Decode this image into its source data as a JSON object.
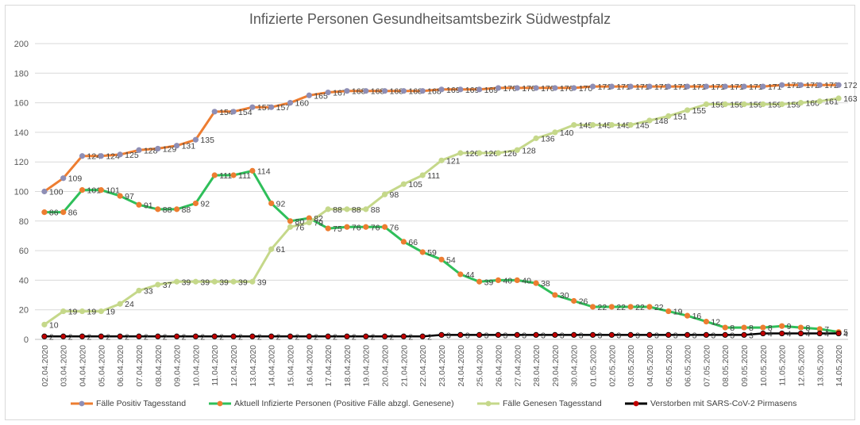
{
  "chart_data": {
    "type": "line",
    "title": "Infizierte Personen Gesundheitsamtsbezirk Südwestpfalz",
    "xlabel": "",
    "ylabel": "",
    "ylim": [
      0,
      200
    ],
    "yticks": [
      0,
      20,
      40,
      60,
      80,
      100,
      120,
      140,
      160,
      180,
      200
    ],
    "grid": true,
    "legend_position": "bottom",
    "categories": [
      "02.04.2020",
      "03.04.2020",
      "04.04.2020",
      "05.04.2020",
      "06.04.2020",
      "07.04.2020",
      "08.04.2020",
      "09.04.2020",
      "10.04.2020",
      "11.04.2020",
      "12.04.2020",
      "13.04.2020",
      "14.04.2020",
      "15.04.2020",
      "16.04.2020",
      "17.04.2020",
      "18.04.2020",
      "19.04.2020",
      "20.04.2020",
      "21.04.2020",
      "22.04.2020",
      "23.04.2020",
      "24.04.2020",
      "25.04.2020",
      "26.04.2020",
      "27.04.2020",
      "28.04.2020",
      "29.04.2020",
      "30.04.2020",
      "01.05.2020",
      "02.05.2020",
      "03.05.2020",
      "04.05.2020",
      "05.05.2020",
      "06.05.2020",
      "07.05.2020",
      "08.05.2020",
      "09.05.2020",
      "10.05.2020",
      "11.05.2020",
      "12.05.2020",
      "13.05.2020",
      "14.05.2020"
    ],
    "series": [
      {
        "name": "Fälle Positiv Tagesstand",
        "color": "#ed7d31",
        "marker": "#8e8eb5",
        "values": [
          100,
          109,
          124,
          124,
          125,
          128,
          129,
          131,
          135,
          154,
          154,
          157,
          157,
          160,
          165,
          167,
          168,
          168,
          168,
          168,
          168,
          169,
          169,
          169,
          170,
          170,
          170,
          170,
          170,
          171,
          171,
          171,
          171,
          171,
          171,
          171,
          171,
          171,
          171,
          172,
          172,
          172,
          172
        ]
      },
      {
        "name": "Aktuell Infizierte Personen (Positive Fälle abzgl. Genesene)",
        "color": "#2fbf5a",
        "marker": "#ed7d31",
        "values": [
          86,
          86,
          101,
          101,
          97,
          91,
          88,
          88,
          92,
          111,
          111,
          114,
          92,
          80,
          82,
          75,
          76,
          76,
          76,
          66,
          59,
          54,
          44,
          39,
          40,
          40,
          38,
          30,
          26,
          22,
          22,
          22,
          22,
          19,
          16,
          12,
          8,
          8,
          8,
          9,
          8,
          7,
          5
        ]
      },
      {
        "name": "Fälle Genesen Tagesstand",
        "color": "#c5d88a",
        "marker": "#c5d88a",
        "values": [
          10,
          19,
          19,
          19,
          24,
          33,
          37,
          39,
          39,
          39,
          39,
          39,
          61,
          76,
          79,
          88,
          88,
          88,
          98,
          105,
          111,
          121,
          126,
          126,
          126,
          128,
          136,
          140,
          145,
          145,
          145,
          145,
          148,
          151,
          155,
          159,
          159,
          159,
          159,
          159,
          160,
          161,
          163
        ]
      },
      {
        "name": "Verstorben mit SARS-CoV-2 Pirmasens",
        "color": "#000000",
        "marker": "#c00000",
        "values": [
          2,
          2,
          2,
          2,
          2,
          2,
          2,
          2,
          2,
          2,
          2,
          2,
          2,
          2,
          2,
          2,
          2,
          2,
          2,
          2,
          2,
          3,
          3,
          3,
          3,
          3,
          3,
          3,
          3,
          3,
          3,
          3,
          3,
          3,
          3,
          3,
          3,
          3,
          4,
          4,
          4,
          4,
          4
        ]
      }
    ]
  }
}
